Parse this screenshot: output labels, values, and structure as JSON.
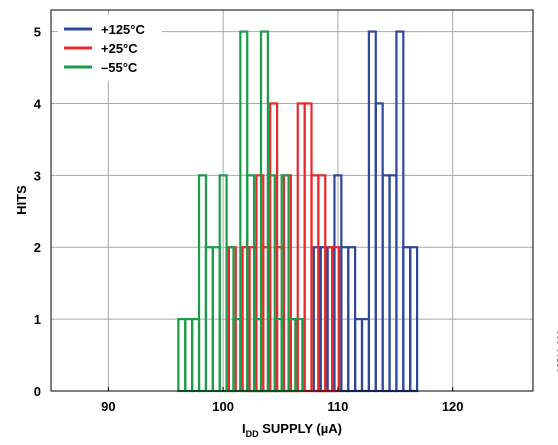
{
  "chart_data": {
    "type": "bar",
    "subtype": "histogram",
    "xlabel_main": "I",
    "xlabel_sub": "DD",
    "xlabel_rest": " SUPPLY (µA)",
    "ylabel": "HITS",
    "xlim": [
      85,
      127
    ],
    "ylim": [
      0,
      5.3
    ],
    "xticks": [
      90,
      100,
      110,
      120
    ],
    "yticks": [
      0,
      1,
      2,
      3,
      4,
      5
    ],
    "grid": true,
    "legend_position": "top-left",
    "bin_width": 0.6,
    "series": [
      {
        "name": "+125°C",
        "color": "#2e4799",
        "bins": [
          {
            "start": 107.9,
            "hits": 2
          },
          {
            "start": 108.5,
            "hits": 2
          },
          {
            "start": 109.1,
            "hits": 2
          },
          {
            "start": 109.7,
            "hits": 3
          },
          {
            "start": 110.3,
            "hits": 2
          },
          {
            "start": 110.9,
            "hits": 2
          },
          {
            "start": 111.5,
            "hits": 1
          },
          {
            "start": 112.1,
            "hits": 1
          },
          {
            "start": 112.7,
            "hits": 5
          },
          {
            "start": 113.3,
            "hits": 4
          },
          {
            "start": 113.9,
            "hits": 3
          },
          {
            "start": 114.5,
            "hits": 3
          },
          {
            "start": 115.1,
            "hits": 5
          },
          {
            "start": 115.7,
            "hits": 2
          },
          {
            "start": 116.3,
            "hits": 2
          }
        ]
      },
      {
        "name": "+25°C",
        "color": "#e8282a",
        "bins": [
          {
            "start": 100.5,
            "hits": 2
          },
          {
            "start": 101.7,
            "hits": 2
          },
          {
            "start": 102.3,
            "hits": 2
          },
          {
            "start": 102.9,
            "hits": 3
          },
          {
            "start": 103.5,
            "hits": 2
          },
          {
            "start": 104.1,
            "hits": 4
          },
          {
            "start": 104.7,
            "hits": 2
          },
          {
            "start": 105.3,
            "hits": 3
          },
          {
            "start": 105.9,
            "hits": 1
          },
          {
            "start": 106.5,
            "hits": 4
          },
          {
            "start": 107.1,
            "hits": 4
          },
          {
            "start": 107.7,
            "hits": 3
          },
          {
            "start": 108.3,
            "hits": 3
          },
          {
            "start": 108.9,
            "hits": 2
          },
          {
            "start": 109.5,
            "hits": 2
          }
        ]
      },
      {
        "name": "–55°C",
        "color": "#1a9c4a",
        "bins": [
          {
            "start": 96.1,
            "hits": 1
          },
          {
            "start": 96.7,
            "hits": 1
          },
          {
            "start": 97.3,
            "hits": 1
          },
          {
            "start": 97.9,
            "hits": 3
          },
          {
            "start": 98.5,
            "hits": 2
          },
          {
            "start": 99.1,
            "hits": 2
          },
          {
            "start": 99.7,
            "hits": 3
          },
          {
            "start": 100.3,
            "hits": 2
          },
          {
            "start": 100.9,
            "hits": 1
          },
          {
            "start": 101.5,
            "hits": 5
          },
          {
            "start": 102.1,
            "hits": 3
          },
          {
            "start": 102.7,
            "hits": 1
          },
          {
            "start": 103.3,
            "hits": 5
          },
          {
            "start": 103.9,
            "hits": 3
          },
          {
            "start": 104.5,
            "hits": 1
          },
          {
            "start": 105.1,
            "hits": 3
          },
          {
            "start": 105.7,
            "hits": 1
          },
          {
            "start": 106.3,
            "hits": 1
          }
        ]
      }
    ]
  },
  "figure_id": "08516-038"
}
